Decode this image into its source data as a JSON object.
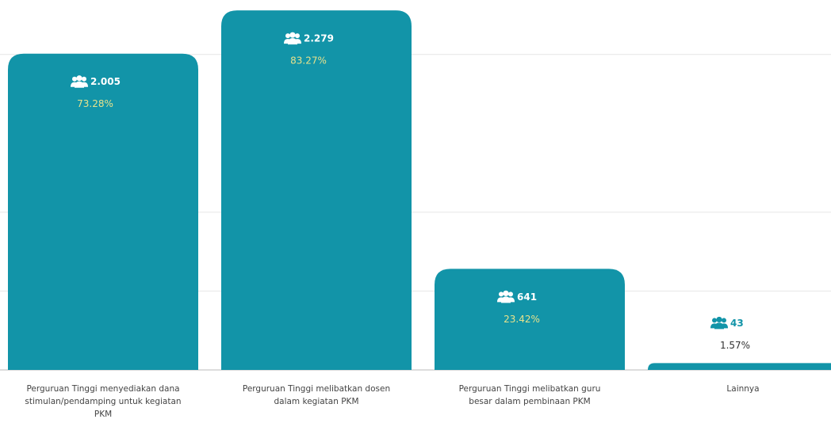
{
  "chart_data": {
    "type": "bar",
    "categories": [
      "Perguruan Tinggi menyediakan dana stimulan/pendamping untuk kegiatan PKM",
      "Perguruan Tinggi melibatkan dosen dalam kegiatan PKM",
      "Perguruan Tinggi melibatkan guru besar dalam pembinaan PKM",
      "Lainnya"
    ],
    "values": [
      2005,
      2279,
      641,
      43
    ],
    "value_labels": [
      "2.005",
      "2.279",
      "641",
      "43"
    ],
    "percents": [
      73.28,
      83.27,
      23.42,
      1.57
    ],
    "percent_labels": [
      "73.28%",
      "83.27%",
      "23.42%",
      "1.57%"
    ],
    "color": "#1294a8",
    "ylim": [
      0,
      2300
    ],
    "yticks": [
      0,
      500,
      1000,
      2000
    ],
    "grid": true
  }
}
